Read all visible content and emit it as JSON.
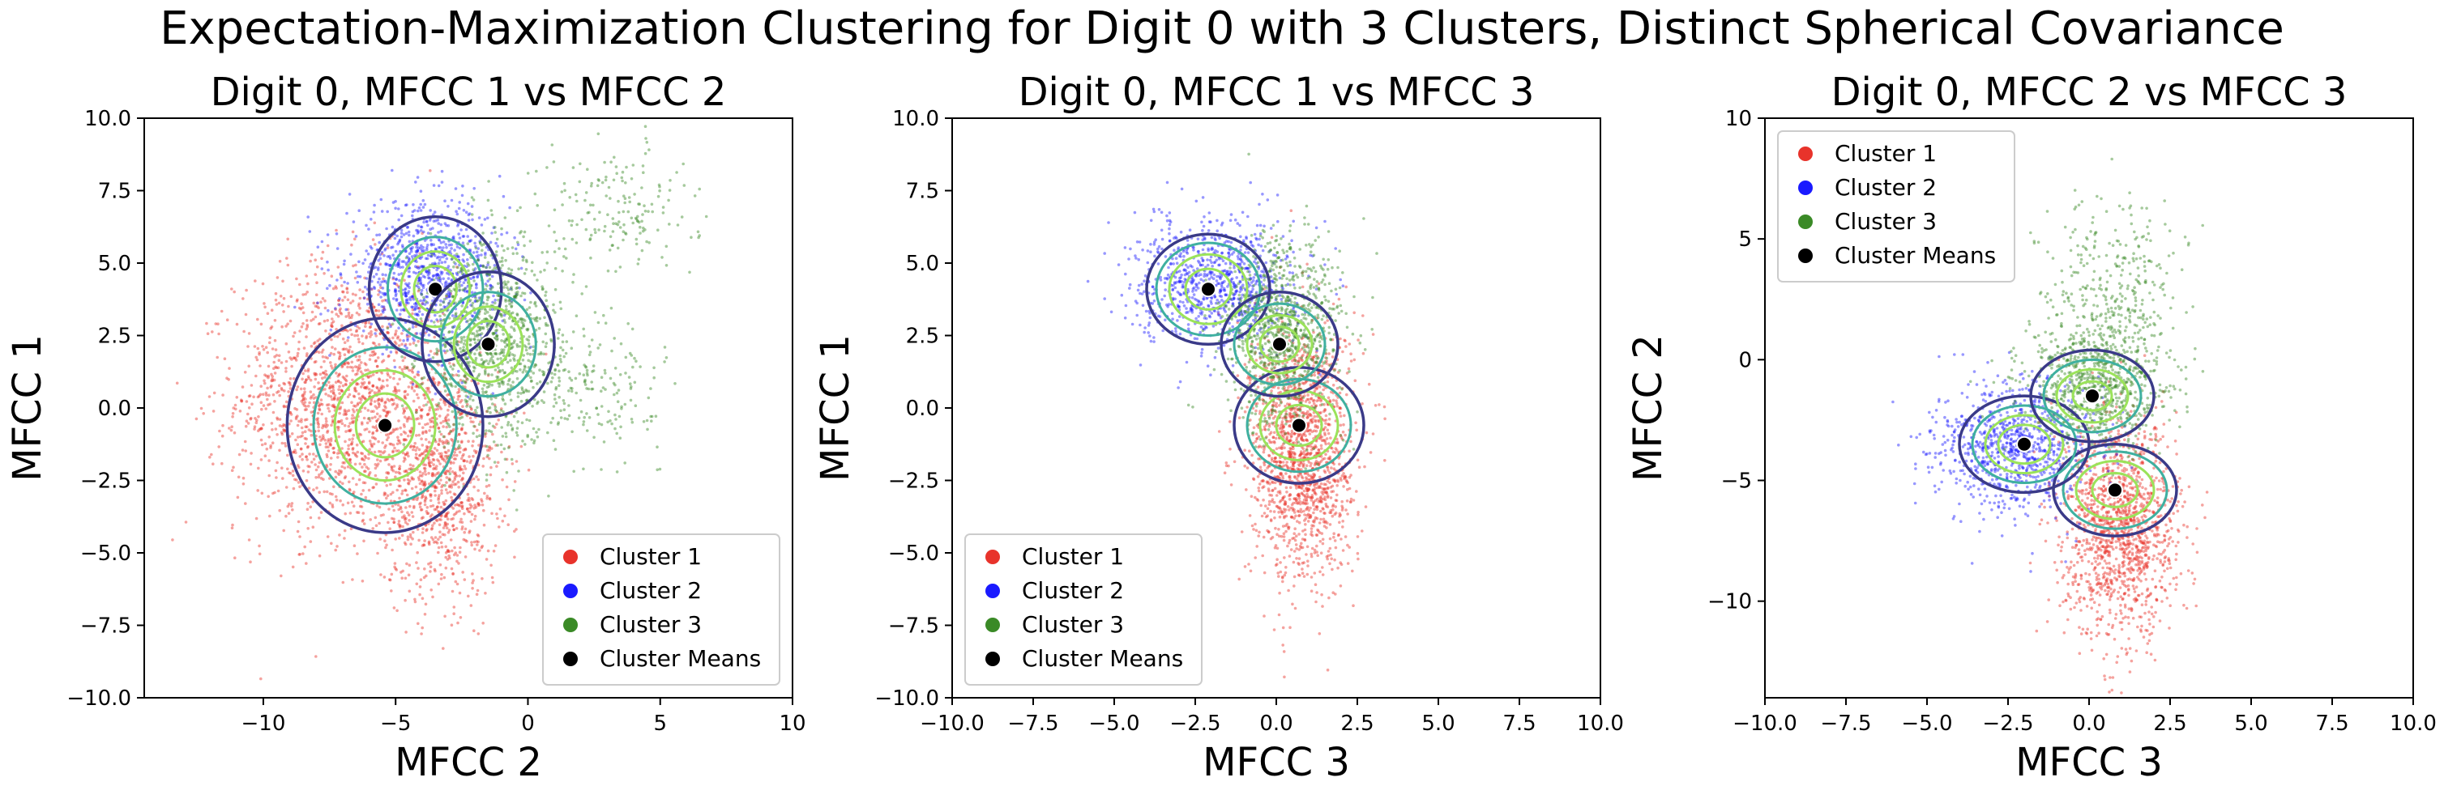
{
  "figure_title": "Expectation-Maximization Clustering for Digit 0 with 3 Clusters, Distinct Spherical Covariance",
  "colors": {
    "cluster_1": "#e8332b",
    "cluster_2": "#1a1aff",
    "cluster_3": "#3a8a26",
    "means": "#000000",
    "contour_inner": "#9be35a",
    "contour_mid": "#3fb0a0",
    "contour_outer": "#3a3a88"
  },
  "chart_data": [
    {
      "type": "scatter",
      "title": "Digit 0, MFCC 1 vs MFCC 2",
      "xlabel": "MFCC 2",
      "ylabel": "MFCC 1",
      "xlim": [
        -14.5,
        10
      ],
      "ylim": [
        -10,
        10
      ],
      "xticks": [
        "−10",
        "−5",
        "0",
        "5",
        "10"
      ],
      "xtick_values": [
        -10,
        -5,
        0,
        5,
        10
      ],
      "yticks": [
        "−10.0",
        "−7.5",
        "−5.0",
        "−2.5",
        "0.0",
        "2.5",
        "5.0",
        "7.5",
        "10.0"
      ],
      "ytick_values": [
        -10,
        -7.5,
        -5,
        -2.5,
        0,
        2.5,
        5,
        7.5,
        10
      ],
      "legend_position": "lower-right",
      "series": [
        {
          "name": "Cluster 1",
          "color_key": "cluster_1",
          "mean": [
            -5.4,
            -0.6
          ],
          "blobs": [
            {
              "cx": -7.0,
              "cy": 0.3,
              "sx": 2.0,
              "sy": 2.3,
              "n": 1600
            },
            {
              "cx": -3.3,
              "cy": -2.5,
              "sx": 1.1,
              "sy": 2.0,
              "n": 900
            }
          ]
        },
        {
          "name": "Cluster 2",
          "color_key": "cluster_2",
          "mean": [
            -3.5,
            4.1
          ],
          "blobs": [
            {
              "cx": -3.8,
              "cy": 4.6,
              "sx": 1.5,
              "sy": 1.2,
              "n": 900
            }
          ]
        },
        {
          "name": "Cluster 3",
          "color_key": "cluster_3",
          "mean": [
            -1.5,
            2.2
          ],
          "blobs": [
            {
              "cx": -1.3,
              "cy": 2.3,
              "sx": 1.3,
              "sy": 1.8,
              "n": 1000
            },
            {
              "cx": 2.6,
              "cy": 0.6,
              "sx": 1.2,
              "sy": 1.0,
              "n": 160
            },
            {
              "cx": 3.3,
              "cy": 6.8,
              "sx": 1.5,
              "sy": 1.2,
              "n": 180
            }
          ]
        }
      ],
      "means": [
        [
          -5.4,
          -0.6
        ],
        [
          -3.5,
          4.1
        ],
        [
          -1.5,
          2.2
        ]
      ],
      "contour_radii": [
        [
          1.1,
          1.9,
          2.7,
          3.7
        ],
        [
          0.8,
          1.3,
          1.8,
          2.5
        ],
        [
          0.8,
          1.3,
          1.8,
          2.5
        ]
      ],
      "legend": [
        "Cluster 1",
        "Cluster 2",
        "Cluster 3",
        "Cluster Means"
      ]
    },
    {
      "type": "scatter",
      "title": "Digit 0, MFCC 1 vs MFCC 3",
      "xlabel": "MFCC 3",
      "ylabel": "MFCC 1",
      "xlim": [
        -10,
        10
      ],
      "ylim": [
        -10,
        10
      ],
      "xticks": [
        "−10.0",
        "−7.5",
        "−5.0",
        "−2.5",
        "0.0",
        "2.5",
        "5.0",
        "7.5",
        "10.0"
      ],
      "xtick_values": [
        -10,
        -7.5,
        -5,
        -2.5,
        0,
        2.5,
        5,
        7.5,
        10
      ],
      "yticks": [
        "−10.0",
        "−7.5",
        "−5.0",
        "−2.5",
        "0.0",
        "2.5",
        "5.0",
        "7.5",
        "10.0"
      ],
      "ytick_values": [
        -10,
        -7.5,
        -5,
        -2.5,
        0,
        2.5,
        5,
        7.5,
        10
      ],
      "legend_position": "lower-left",
      "series": [
        {
          "name": "Cluster 1",
          "color_key": "cluster_1",
          "mean": [
            0.7,
            -0.6
          ],
          "blobs": [
            {
              "cx": 0.8,
              "cy": -1.5,
              "sx": 0.8,
              "sy": 2.2,
              "n": 1600
            }
          ]
        },
        {
          "name": "Cluster 2",
          "color_key": "cluster_2",
          "mean": [
            -2.1,
            4.1
          ],
          "blobs": [
            {
              "cx": -1.9,
              "cy": 4.3,
              "sx": 1.2,
              "sy": 1.1,
              "n": 900
            }
          ]
        },
        {
          "name": "Cluster 3",
          "color_key": "cluster_3",
          "mean": [
            0.1,
            2.2
          ],
          "blobs": [
            {
              "cx": 0.2,
              "cy": 2.6,
              "sx": 0.9,
              "sy": 1.6,
              "n": 1000
            }
          ]
        }
      ],
      "means": [
        [
          0.7,
          -0.6
        ],
        [
          -2.1,
          4.1
        ],
        [
          0.1,
          2.2
        ]
      ],
      "contour_radii": [
        [
          0.7,
          1.2,
          1.6,
          2.0
        ],
        [
          0.7,
          1.2,
          1.6,
          1.9
        ],
        [
          0.6,
          1.0,
          1.4,
          1.8
        ]
      ],
      "legend": [
        "Cluster 1",
        "Cluster 2",
        "Cluster 3",
        "Cluster Means"
      ]
    },
    {
      "type": "scatter",
      "title": "Digit 0, MFCC 2 vs MFCC 3",
      "xlabel": "MFCC 3",
      "ylabel": "MFCC 2",
      "xlim": [
        -10,
        10
      ],
      "ylim": [
        -14,
        10
      ],
      "xticks": [
        "−10.0",
        "−7.5",
        "−5.0",
        "−2.5",
        "0.0",
        "2.5",
        "5.0",
        "7.5",
        "10.0"
      ],
      "xtick_values": [
        -10,
        -7.5,
        -5,
        -2.5,
        0,
        2.5,
        5,
        7.5,
        10
      ],
      "yticks": [
        "−10",
        "−5",
        "0",
        "5",
        "10"
      ],
      "ytick_values": [
        -10,
        -5,
        0,
        5,
        10
      ],
      "legend_position": "upper-left",
      "series": [
        {
          "name": "Cluster 1",
          "color_key": "cluster_1",
          "mean": [
            0.8,
            -5.4
          ],
          "blobs": [
            {
              "cx": 1.0,
              "cy": -7.0,
              "sx": 0.9,
              "sy": 2.2,
              "n": 1400
            }
          ]
        },
        {
          "name": "Cluster 2",
          "color_key": "cluster_2",
          "mean": [
            -2.0,
            -3.5
          ],
          "blobs": [
            {
              "cx": -2.3,
              "cy": -3.6,
              "sx": 1.2,
              "sy": 1.3,
              "n": 900
            }
          ]
        },
        {
          "name": "Cluster 3",
          "color_key": "cluster_3",
          "mean": [
            0.1,
            -1.5
          ],
          "blobs": [
            {
              "cx": 0.2,
              "cy": -1.0,
              "sx": 1.1,
              "sy": 1.3,
              "n": 800
            },
            {
              "cx": 0.8,
              "cy": 2.8,
              "sx": 1.0,
              "sy": 2.0,
              "n": 350
            }
          ]
        }
      ],
      "means": [
        [
          0.8,
          -5.4
        ],
        [
          -2.0,
          -3.5
        ],
        [
          0.1,
          -1.5
        ]
      ],
      "contour_radii": [
        [
          0.7,
          1.2,
          1.6,
          1.9
        ],
        [
          0.8,
          1.2,
          1.6,
          2.0
        ],
        [
          0.6,
          1.1,
          1.5,
          1.9
        ]
      ],
      "legend": [
        "Cluster 1",
        "Cluster 2",
        "Cluster 3",
        "Cluster Means"
      ]
    }
  ]
}
